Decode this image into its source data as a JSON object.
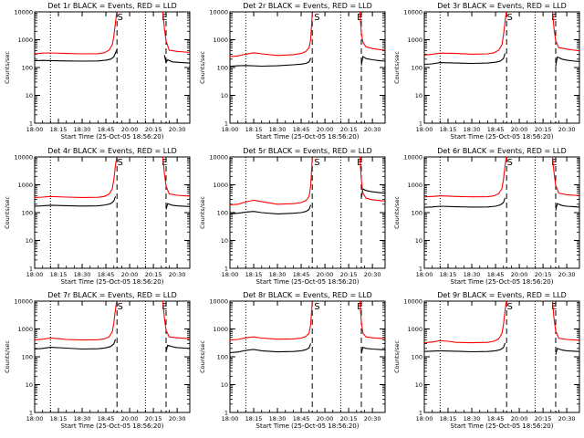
{
  "x_ticks": [
    "18:00",
    "18:15",
    "18:30",
    "18:45",
    "20:00",
    "20:15",
    "20:30"
  ],
  "y_ticks": [
    "10000",
    "1000",
    "100",
    "10",
    "1"
  ],
  "ylabel": "Counts/sec",
  "xlabel": "Start Time (25-Oct-05 18:56:20)",
  "marker_labels": [
    "S",
    "E"
  ],
  "series_colors": {
    "events": "#000000",
    "lld": "#ff0000"
  },
  "chart_data": [
    {
      "type": "line",
      "title": "Det 1r BLACK = Events, RED = LLD",
      "xlabel": "Start Time (25-Oct-05 18:56:20)",
      "ylabel": "Counts/sec",
      "x_unit": "minutes",
      "xlim": [
        0,
        98
      ],
      "ylim": [
        1,
        10000
      ],
      "y_scale": "log",
      "vlines_dotted": [
        10,
        70
      ],
      "vlines_dashed": [
        52,
        83
      ],
      "markers": [
        {
          "label": "S",
          "x": 54
        },
        {
          "label": "E",
          "x": 82
        }
      ],
      "series": [
        {
          "color": "#000000",
          "x": [
            0,
            5,
            10,
            20,
            30,
            40,
            45,
            48,
            50,
            51,
            52,
            82,
            83,
            84,
            87,
            90,
            95,
            98
          ],
          "y": [
            175,
            180,
            178,
            172,
            170,
            172,
            185,
            200,
            240,
            330,
            450,
            280,
            150,
            190,
            160,
            155,
            148,
            145
          ]
        },
        {
          "color": "#ff0000",
          "x": [
            0,
            5,
            10,
            20,
            30,
            40,
            44,
            47,
            49,
            50,
            51,
            52,
            81,
            82,
            83,
            85,
            90,
            95,
            98
          ],
          "y": [
            310,
            330,
            335,
            320,
            310,
            315,
            340,
            420,
            650,
            1300,
            4000,
            12000,
            10000,
            2500,
            900,
            420,
            380,
            360,
            350
          ]
        }
      ]
    },
    {
      "type": "line",
      "title": "Det 2r BLACK = Events, RED = LLD",
      "xlabel": "Start Time (25-Oct-05 18:56:20)",
      "ylabel": "Counts/sec",
      "x_unit": "minutes",
      "xlim": [
        0,
        98
      ],
      "ylim": [
        1,
        10000
      ],
      "y_scale": "log",
      "vlines_dotted": [
        10,
        70
      ],
      "vlines_dashed": [
        52,
        83
      ],
      "markers": [
        {
          "label": "S",
          "x": 55
        },
        {
          "label": "E",
          "x": 82
        }
      ],
      "series": [
        {
          "color": "#000000",
          "x": [
            0,
            5,
            10,
            20,
            30,
            40,
            45,
            48,
            50,
            51,
            83,
            84,
            86,
            90,
            95,
            98
          ],
          "y": [
            110,
            115,
            118,
            112,
            115,
            125,
            132,
            140,
            160,
            220,
            120,
            250,
            210,
            190,
            175,
            170
          ]
        },
        {
          "color": "#ff0000",
          "x": [
            0,
            5,
            10,
            15,
            20,
            30,
            40,
            45,
            48,
            50,
            51,
            52,
            82,
            83,
            84,
            86,
            90,
            95,
            98
          ],
          "y": [
            250,
            260,
            300,
            340,
            310,
            270,
            290,
            320,
            380,
            520,
            1000,
            9000,
            12000,
            1800,
            800,
            550,
            480,
            440,
            420
          ]
        }
      ]
    },
    {
      "type": "line",
      "title": "Det 3r BLACK = Events, RED = LLD",
      "xlabel": "Start Time (25-Oct-05 18:56:20)",
      "ylabel": "Counts/sec",
      "x_unit": "minutes",
      "xlim": [
        0,
        98
      ],
      "ylim": [
        1,
        10000
      ],
      "y_scale": "log",
      "vlines_dotted": [
        10,
        70
      ],
      "vlines_dashed": [
        52,
        83
      ],
      "markers": [
        {
          "label": "S",
          "x": 54
        },
        {
          "label": "E",
          "x": 82
        }
      ],
      "series": [
        {
          "color": "#000000",
          "x": [
            0,
            5,
            10,
            20,
            30,
            40,
            45,
            48,
            50,
            51,
            83,
            84,
            87,
            90,
            95,
            98
          ],
          "y": [
            130,
            135,
            150,
            145,
            140,
            145,
            155,
            170,
            210,
            320,
            110,
            240,
            200,
            185,
            170,
            165
          ]
        },
        {
          "color": "#ff0000",
          "x": [
            0,
            5,
            10,
            20,
            30,
            40,
            44,
            47,
            49,
            50,
            51,
            52,
            81,
            82,
            83,
            85,
            90,
            95,
            98
          ],
          "y": [
            280,
            300,
            330,
            320,
            300,
            310,
            340,
            420,
            650,
            1400,
            4500,
            12000,
            11000,
            2400,
            900,
            520,
            460,
            420,
            400
          ]
        }
      ]
    },
    {
      "type": "line",
      "title": "Det 4r BLACK = Events, RED = LLD",
      "xlabel": "Start Time (25-Oct-05 18:56:20)",
      "ylabel": "Counts/sec",
      "x_unit": "minutes",
      "xlim": [
        0,
        98
      ],
      "ylim": [
        1,
        10000
      ],
      "y_scale": "log",
      "vlines_dotted": [
        10,
        70
      ],
      "vlines_dashed": [
        52,
        83
      ],
      "markers": [
        {
          "label": "S",
          "x": 54
        },
        {
          "label": "E",
          "x": 82
        }
      ],
      "series": [
        {
          "color": "#000000",
          "x": [
            0,
            5,
            10,
            20,
            30,
            40,
            45,
            48,
            50,
            51,
            83,
            84,
            87,
            90,
            95,
            98
          ],
          "y": [
            170,
            175,
            185,
            178,
            172,
            175,
            190,
            210,
            260,
            380,
            130,
            210,
            185,
            175,
            168,
            165
          ]
        },
        {
          "color": "#ff0000",
          "x": [
            0,
            5,
            10,
            20,
            30,
            40,
            44,
            47,
            49,
            50,
            51,
            52,
            81,
            82,
            83,
            85,
            90,
            95,
            98
          ],
          "y": [
            350,
            360,
            380,
            360,
            350,
            355,
            380,
            460,
            700,
            1500,
            4800,
            12000,
            10000,
            2500,
            900,
            470,
            420,
            400,
            390
          ]
        }
      ]
    },
    {
      "type": "line",
      "title": "Det 5r BLACK = Events, RED = LLD",
      "xlabel": "Start Time (25-Oct-05 18:56:20)",
      "ylabel": "Counts/sec",
      "x_unit": "minutes",
      "xlim": [
        0,
        98
      ],
      "ylim": [
        1,
        10000
      ],
      "y_scale": "log",
      "vlines_dotted": [
        10,
        70
      ],
      "vlines_dashed": [
        52,
        83
      ],
      "markers": [
        {
          "label": "S",
          "x": 55
        },
        {
          "label": "E",
          "x": 82
        }
      ],
      "series": [
        {
          "color": "#000000",
          "x": [
            0,
            5,
            10,
            15,
            20,
            30,
            40,
            45,
            48,
            50,
            51,
            83,
            84,
            86,
            90,
            95,
            98
          ],
          "y": [
            90,
            95,
            105,
            110,
            100,
            90,
            95,
            100,
            110,
            130,
            190,
            350,
            700,
            620,
            560,
            520,
            500
          ]
        },
        {
          "color": "#ff0000",
          "x": [
            0,
            5,
            10,
            15,
            20,
            30,
            40,
            45,
            48,
            50,
            51,
            52,
            82,
            83,
            84,
            86,
            90,
            95,
            98
          ],
          "y": [
            190,
            200,
            240,
            280,
            250,
            200,
            210,
            230,
            270,
            380,
            900,
            9000,
            12000,
            1500,
            500,
            330,
            290,
            270,
            260
          ]
        }
      ]
    },
    {
      "type": "line",
      "title": "Det 6r BLACK = Events, RED = LLD",
      "xlabel": "Start Time (25-Oct-05 18:56:20)",
      "ylabel": "Counts/sec",
      "x_unit": "minutes",
      "xlim": [
        0,
        98
      ],
      "ylim": [
        1,
        10000
      ],
      "y_scale": "log",
      "vlines_dotted": [
        10,
        70
      ],
      "vlines_dashed": [
        52,
        83
      ],
      "markers": [
        {
          "label": "S",
          "x": 54
        },
        {
          "label": "E",
          "x": 82
        }
      ],
      "series": [
        {
          "color": "#000000",
          "x": [
            0,
            5,
            10,
            20,
            30,
            40,
            45,
            48,
            50,
            51,
            83,
            84,
            87,
            90,
            95,
            98
          ],
          "y": [
            155,
            160,
            170,
            162,
            158,
            160,
            170,
            190,
            230,
            340,
            120,
            210,
            180,
            170,
            162,
            158
          ]
        },
        {
          "color": "#ff0000",
          "x": [
            0,
            5,
            10,
            20,
            30,
            40,
            44,
            47,
            49,
            50,
            51,
            52,
            81,
            82,
            83,
            85,
            90,
            95,
            98
          ],
          "y": [
            370,
            380,
            400,
            380,
            370,
            372,
            400,
            480,
            720,
            1500,
            4800,
            12000,
            10000,
            2600,
            950,
            500,
            440,
            420,
            410
          ]
        }
      ]
    },
    {
      "type": "line",
      "title": "Det 7r BLACK = Events, RED = LLD",
      "xlabel": "Start Time (25-Oct-05 18:56:20)",
      "ylabel": "Counts/sec",
      "x_unit": "minutes",
      "xlim": [
        0,
        98
      ],
      "ylim": [
        1,
        10000
      ],
      "y_scale": "log",
      "vlines_dotted": [
        10,
        70
      ],
      "vlines_dashed": [
        52,
        83
      ],
      "markers": [
        {
          "label": "S",
          "x": 54
        },
        {
          "label": "E",
          "x": 82
        }
      ],
      "series": [
        {
          "color": "#000000",
          "x": [
            0,
            5,
            10,
            20,
            30,
            40,
            45,
            48,
            50,
            51,
            83,
            84,
            87,
            90,
            95,
            98
          ],
          "y": [
            190,
            200,
            220,
            205,
            190,
            195,
            210,
            235,
            290,
            420,
            150,
            260,
            230,
            215,
            205,
            200
          ]
        },
        {
          "color": "#ff0000",
          "x": [
            0,
            5,
            10,
            15,
            20,
            30,
            40,
            44,
            47,
            49,
            50,
            51,
            52,
            81,
            82,
            83,
            85,
            90,
            95,
            98
          ],
          "y": [
            400,
            430,
            470,
            450,
            420,
            400,
            410,
            440,
            520,
            780,
            1600,
            5000,
            12000,
            10000,
            2400,
            900,
            520,
            480,
            460,
            450
          ]
        }
      ]
    },
    {
      "type": "line",
      "title": "Det 8r BLACK = Events, RED = LLD",
      "xlabel": "Start Time (25-Oct-05 18:56:20)",
      "ylabel": "Counts/sec",
      "x_unit": "minutes",
      "xlim": [
        0,
        98
      ],
      "ylim": [
        1,
        10000
      ],
      "y_scale": "log",
      "vlines_dotted": [
        10,
        70
      ],
      "vlines_dashed": [
        52,
        83
      ],
      "markers": [
        {
          "label": "S",
          "x": 55
        },
        {
          "label": "E",
          "x": 82
        }
      ],
      "series": [
        {
          "color": "#000000",
          "x": [
            0,
            5,
            10,
            15,
            20,
            30,
            40,
            45,
            48,
            50,
            51,
            83,
            84,
            86,
            90,
            95,
            98
          ],
          "y": [
            140,
            148,
            170,
            185,
            165,
            150,
            155,
            165,
            180,
            210,
            300,
            130,
            220,
            200,
            190,
            182,
            178
          ]
        },
        {
          "color": "#ff0000",
          "x": [
            0,
            5,
            10,
            15,
            20,
            30,
            40,
            45,
            48,
            50,
            51,
            52,
            82,
            83,
            84,
            86,
            90,
            95,
            98
          ],
          "y": [
            400,
            420,
            480,
            520,
            470,
            430,
            440,
            470,
            540,
            700,
            1500,
            9000,
            12000,
            1800,
            700,
            520,
            480,
            460,
            450
          ]
        }
      ]
    },
    {
      "type": "line",
      "title": "Det 9r BLACK = Events, RED = LLD",
      "xlabel": "Start Time (25-Oct-05 18:56:20)",
      "ylabel": "Counts/sec",
      "x_unit": "minutes",
      "xlim": [
        0,
        98
      ],
      "ylim": [
        1,
        10000
      ],
      "y_scale": "log",
      "vlines_dotted": [
        10,
        70
      ],
      "vlines_dashed": [
        52,
        83
      ],
      "markers": [
        {
          "label": "S",
          "x": 54
        },
        {
          "label": "E",
          "x": 82
        }
      ],
      "series": [
        {
          "color": "#000000",
          "x": [
            0,
            5,
            10,
            20,
            30,
            40,
            45,
            48,
            50,
            51,
            83,
            84,
            87,
            90,
            95,
            98
          ],
          "y": [
            155,
            160,
            165,
            158,
            152,
            155,
            165,
            180,
            215,
            310,
            120,
            200,
            175,
            165,
            158,
            155
          ]
        },
        {
          "color": "#ff0000",
          "x": [
            0,
            5,
            10,
            15,
            20,
            30,
            40,
            44,
            47,
            49,
            50,
            51,
            52,
            81,
            82,
            83,
            85,
            90,
            95,
            98
          ],
          "y": [
            320,
            340,
            380,
            360,
            330,
            320,
            330,
            360,
            440,
            680,
            1400,
            4600,
            12000,
            10000,
            2300,
            850,
            460,
            420,
            400,
            390
          ]
        }
      ]
    }
  ]
}
